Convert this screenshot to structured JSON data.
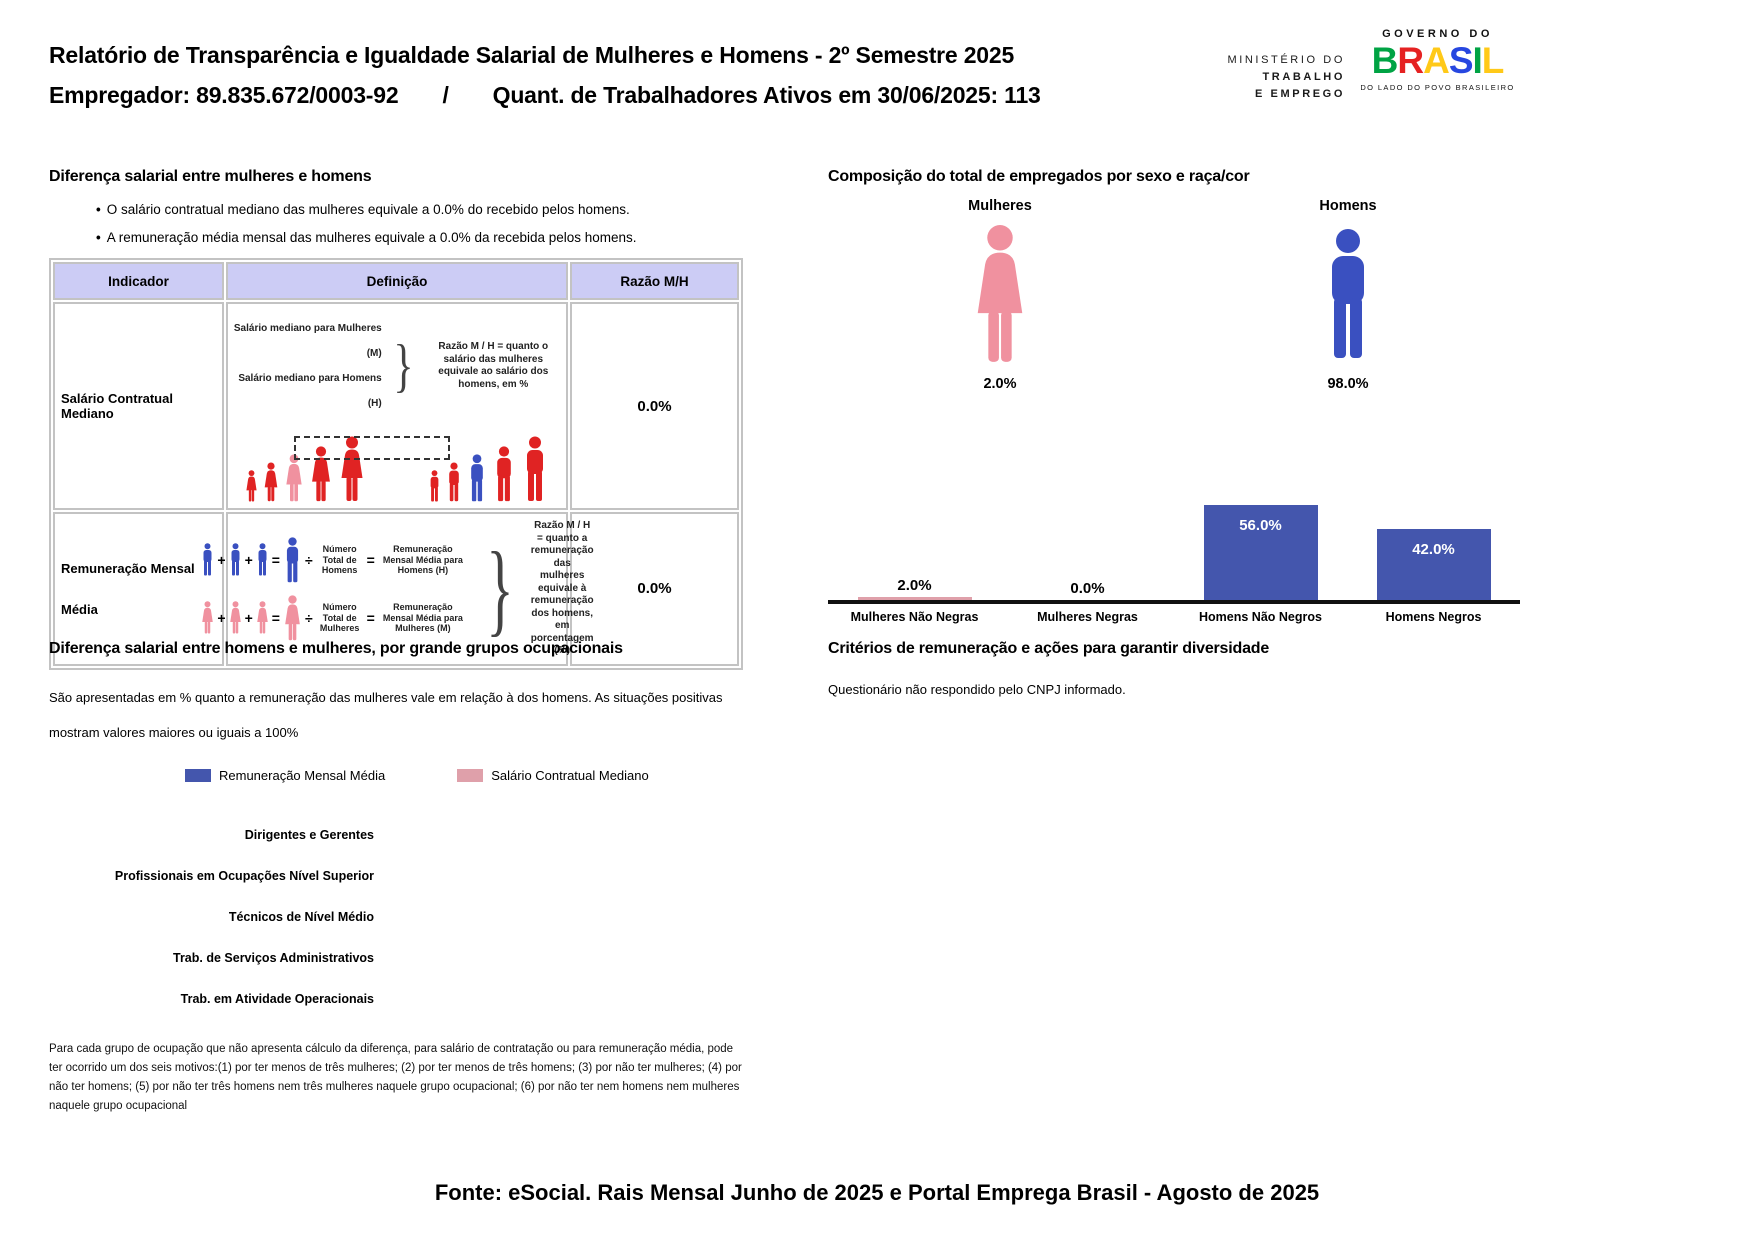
{
  "header": {
    "title": "Relatório de Transparência e Igualdade Salarial de Mulheres e Homens - 2º Semestre 2025",
    "employer": "Empregador: 89.835.672/0003-92",
    "separator": "/",
    "active_workers": "Quant. de Trabalhadores Ativos em 30/06/2025: 113",
    "ministry": {
      "line1": "MINISTÉRIO DO",
      "line2": "TRABALHO",
      "line3": "E EMPREGO"
    },
    "gov_logo": {
      "top": "GOVERNO DO",
      "brand": "BRASIL",
      "tagline": "DO LADO DO POVO BRASILEIRO"
    }
  },
  "salary_gap": {
    "title": "Diferença salarial entre mulheres e homens",
    "marker": "•",
    "bullet1": "O salário contratual mediano das mulheres equivale a 0.0% do recebido pelos homens.",
    "bullet2": "A remuneração média mensal das mulheres equivale a 0.0% da recebida pelos homens.",
    "table": {
      "col_indicator": "Indicador",
      "col_definition": "Definição",
      "col_ratio": "Razão M/H",
      "row1": {
        "indicator": "Salário Contratual Mediano",
        "ratio": "0.0%",
        "def_women": "Salário mediano para Mulheres (M)",
        "def_men": "Salário mediano para Homens (H)",
        "brace": "}",
        "explanation": "Razão M / H = quanto o salário das mulheres equivale ao salário dos homens, em %"
      },
      "row2": {
        "indicator_line1": "Remuneração Mensal",
        "indicator_line2": "Média",
        "ratio": "0.0%",
        "plus": "+",
        "equals": "=",
        "divide": "÷",
        "brace": "}",
        "men_divisor": "Número Total de Homens",
        "men_result": "Remuneração Mensal Média para Homens (H)",
        "women_divisor": "Número Total de Mulheres",
        "women_result": "Remuneração Mensal Média para Mulheres (M)",
        "explanation": "Razão M / H = quanto a remuneração das mulheres equivale à remuneração dos homens, em porcentagem (%)"
      }
    }
  },
  "composition": {
    "title": "Composição do total de empregados por sexo e raça/cor",
    "women_label": "Mulheres",
    "women_pct": "2.0%",
    "men_label": "Homens",
    "men_pct": "98.0%"
  },
  "occupational": {
    "title": "Diferença salarial entre homens e mulheres, por grande grupos ocupacionais",
    "description": "São apresentadas em % quanto a remuneração das mulheres vale em relação à dos homens. As situações positivas mostram valores maiores ou iguais a 100%",
    "footnote": "Para cada grupo de ocupação que não apresenta cálculo da diferença, para salário de contratação ou para remuneração média, pode ter ocorrido um dos seis motivos:(1) por ter menos de três mulheres; (2) por ter menos de três homens; (3) por não ter mulheres; (4) por não ter homens; (5) por não ter três homens nem três mulheres naquele grupo ocupacional; (6) por não ter nem homens nem mulheres naquele grupo ocupacional"
  },
  "criteria": {
    "title": "Critérios de remuneração e ações para garantir diversidade",
    "text": "Questionário não respondido pelo CNPJ informado."
  },
  "footer": {
    "source": "Fonte: eSocial. Rais Mensal Junho de 2025 e Portal Emprega Brasil - Agosto de 2025"
  },
  "colors": {
    "male_blue": "#3a50c0",
    "female_pink": "#f0919f",
    "bar_blue": "#4456ad",
    "bar_pink": "#dfa0aa",
    "figure_red": "#e02323",
    "table_header_bg": "#ccccf5"
  },
  "chart_data": [
    {
      "type": "bar",
      "title": "Composição do total de empregados por sexo e raça/cor",
      "categories": [
        "Mulheres Não Negras",
        "Mulheres Negras",
        "Homens Não Negros",
        "Homens Negros"
      ],
      "values": [
        2.0,
        0.0,
        56.0,
        42.0
      ],
      "value_labels": [
        "2.0%",
        "0.0%",
        "56.0%",
        "42.0%"
      ],
      "bar_colors": [
        "#dfa0aa",
        "#dfa0aa",
        "#4456ad",
        "#4456ad"
      ],
      "ylim": [
        0,
        100
      ],
      "grid": false,
      "gender_split": {
        "Mulheres": 2.0,
        "Homens": 98.0
      }
    },
    {
      "type": "bar",
      "orientation": "horizontal",
      "title": "Diferença salarial entre homens e mulheres, por grande grupos ocupacionais",
      "categories": [
        "Dirigentes e Gerentes",
        "Profissionais em Ocupações Nível Superior",
        "Técnicos de Nível Médio",
        "Trab. de Serviços Administrativos",
        "Trab. em Atividade Operacionais"
      ],
      "series": [
        {
          "name": "Remuneração Mensal Média",
          "color": "#4456ad",
          "values": [
            null,
            null,
            null,
            null,
            null
          ]
        },
        {
          "name": "Salário Contratual Mediano",
          "color": "#dfa0aa",
          "values": [
            null,
            null,
            null,
            null,
            null
          ]
        }
      ],
      "legend_position": "top"
    }
  ]
}
